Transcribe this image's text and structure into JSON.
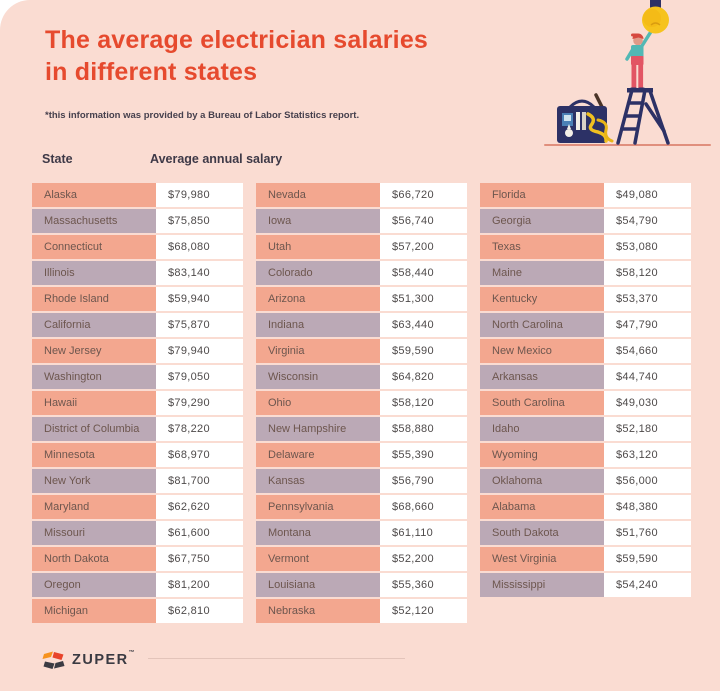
{
  "header": {
    "title": "The average electrician salaries in different states",
    "note": "*this information was provided by a Bureau of Labor Statistics report."
  },
  "table_headers": {
    "state": "State",
    "salary": "Average annual salary"
  },
  "footer": {
    "brand": "ZUPER",
    "trademark": "™"
  },
  "illustration": {
    "name": "electrician-on-ladder-reaching-lightbulb",
    "elements": [
      "lightbulb",
      "electrician-figure",
      "step-ladder",
      "toolbox"
    ]
  },
  "colors": {
    "background": "#fadcd2",
    "title": "#e64a2e",
    "row_salmon": "#f3a78f",
    "row_lavender": "#bba9b6",
    "salary_cell": "#ffffff",
    "state_text": "#6d564e",
    "salary_text": "#4e4a4a",
    "illustration_navy": "#2c3166",
    "bulb_yellow": "#f6c31d",
    "figure_red": "#e25564",
    "figure_teal": "#52b8b4"
  },
  "chart_data": {
    "type": "table",
    "title": "The average electrician salaries in different states",
    "source_note": "*this information was provided by a Bureau of Labor Statistics report.",
    "column_headers": [
      "State",
      "Average annual salary"
    ],
    "columns": [
      [
        {
          "state": "Alaska",
          "salary": "$79,980"
        },
        {
          "state": "Massachusetts",
          "salary": "$75,850"
        },
        {
          "state": "Connecticut",
          "salary": "$68,080"
        },
        {
          "state": "Illinois",
          "salary": "$83,140"
        },
        {
          "state": "Rhode Island",
          "salary": "$59,940"
        },
        {
          "state": "California",
          "salary": "$75,870"
        },
        {
          "state": "New Jersey",
          "salary": "$79,940"
        },
        {
          "state": "Washington",
          "salary": "$79,050"
        },
        {
          "state": "Hawaii",
          "salary": "$79,290"
        },
        {
          "state": "District of Columbia",
          "salary": "$78,220"
        },
        {
          "state": "Minnesota",
          "salary": "$68,970"
        },
        {
          "state": "New York",
          "salary": "$81,700"
        },
        {
          "state": "Maryland",
          "salary": "$62,620"
        },
        {
          "state": "Missouri",
          "salary": "$61,600"
        },
        {
          "state": "North Dakota",
          "salary": "$67,750"
        },
        {
          "state": "Oregon",
          "salary": "$81,200"
        },
        {
          "state": "Michigan",
          "salary": "$62,810"
        }
      ],
      [
        {
          "state": "Nevada",
          "salary": "$66,720"
        },
        {
          "state": "Iowa",
          "salary": "$56,740"
        },
        {
          "state": "Utah",
          "salary": "$57,200"
        },
        {
          "state": "Colorado",
          "salary": "$58,440"
        },
        {
          "state": "Arizona",
          "salary": "$51,300"
        },
        {
          "state": "Indiana",
          "salary": "$63,440"
        },
        {
          "state": "Virginia",
          "salary": "$59,590"
        },
        {
          "state": "Wisconsin",
          "salary": "$64,820"
        },
        {
          "state": "Ohio",
          "salary": "$58,120"
        },
        {
          "state": "New Hampshire",
          "salary": "$58,880"
        },
        {
          "state": "Delaware",
          "salary": "$55,390"
        },
        {
          "state": "Kansas",
          "salary": "$56,790"
        },
        {
          "state": "Pennsylvania",
          "salary": "$68,660"
        },
        {
          "state": "Montana",
          "salary": "$61,110"
        },
        {
          "state": "Vermont",
          "salary": "$52,200"
        },
        {
          "state": "Louisiana",
          "salary": "$55,360"
        },
        {
          "state": "Nebraska",
          "salary": "$52,120"
        }
      ],
      [
        {
          "state": "Florida",
          "salary": "$49,080"
        },
        {
          "state": "Georgia",
          "salary": "$54,790"
        },
        {
          "state": "Texas",
          "salary": "$53,080"
        },
        {
          "state": "Maine",
          "salary": "$58,120"
        },
        {
          "state": "Kentucky",
          "salary": "$53,370"
        },
        {
          "state": "North Carolina",
          "salary": "$47,790"
        },
        {
          "state": "New Mexico",
          "salary": "$54,660"
        },
        {
          "state": "Arkansas",
          "salary": "$44,740"
        },
        {
          "state": "South Carolina",
          "salary": "$49,030"
        },
        {
          "state": "Idaho",
          "salary": "$52,180"
        },
        {
          "state": "Wyoming",
          "salary": "$63,120"
        },
        {
          "state": "Oklahoma",
          "salary": "$56,000"
        },
        {
          "state": "Alabama",
          "salary": "$48,380"
        },
        {
          "state": "South Dakota",
          "salary": "$51,760"
        },
        {
          "state": "West Virginia",
          "salary": "$59,590"
        },
        {
          "state": "Mississippi",
          "salary": "$54,240"
        }
      ]
    ]
  }
}
